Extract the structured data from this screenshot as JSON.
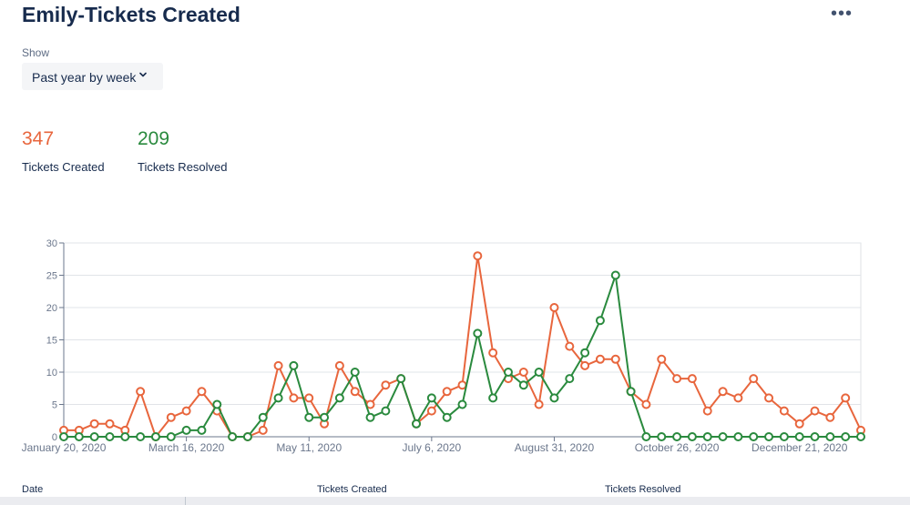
{
  "header": {
    "title": "Emily-Tickets Created",
    "more_label": "•••"
  },
  "filter": {
    "label": "Show",
    "value": "Past year by week"
  },
  "stats": {
    "created": {
      "value": "347",
      "label": "Tickets Created",
      "color": "#e8663d"
    },
    "resolved": {
      "value": "209",
      "label": "Tickets Resolved",
      "color": "#2a8a3e"
    }
  },
  "table": {
    "columns": [
      "Date",
      "Tickets Created",
      "Tickets Resolved"
    ]
  },
  "chart_data": {
    "type": "line",
    "title": "",
    "xlabel": "",
    "ylabel": "",
    "ylim": [
      0,
      30
    ],
    "yticks": [
      0,
      5,
      10,
      15,
      20,
      25,
      30
    ],
    "grid": true,
    "x_tick_labels": [
      {
        "index": 0,
        "label": "January 20, 2020"
      },
      {
        "index": 8,
        "label": "March 16, 2020"
      },
      {
        "index": 16,
        "label": "May 11, 2020"
      },
      {
        "index": 24,
        "label": "July 6, 2020"
      },
      {
        "index": 32,
        "label": "August 31, 2020"
      },
      {
        "index": 40,
        "label": "October 26, 2020"
      },
      {
        "index": 48,
        "label": "December 21, 2020"
      }
    ],
    "series": [
      {
        "name": "Tickets Created",
        "color": "#e8663d",
        "values": [
          1,
          1,
          2,
          2,
          1,
          7,
          0,
          3,
          4,
          7,
          4,
          0,
          0,
          1,
          11,
          6,
          6,
          2,
          11,
          7,
          5,
          8,
          9,
          2,
          4,
          7,
          8,
          28,
          13,
          9,
          10,
          5,
          20,
          14,
          11,
          12,
          12,
          7,
          5,
          12,
          9,
          9,
          4,
          7,
          6,
          9,
          6,
          4,
          2,
          4,
          3,
          6,
          1
        ]
      },
      {
        "name": "Tickets Resolved",
        "color": "#2a8a3e",
        "values": [
          0,
          0,
          0,
          0,
          0,
          0,
          0,
          0,
          1,
          1,
          5,
          0,
          0,
          3,
          6,
          11,
          3,
          3,
          6,
          10,
          3,
          4,
          9,
          2,
          6,
          3,
          5,
          16,
          6,
          10,
          8,
          10,
          6,
          9,
          13,
          18,
          25,
          7,
          0,
          0,
          0,
          0,
          0,
          0,
          0,
          0,
          0,
          0,
          0,
          0,
          0,
          0,
          0
        ]
      }
    ]
  }
}
